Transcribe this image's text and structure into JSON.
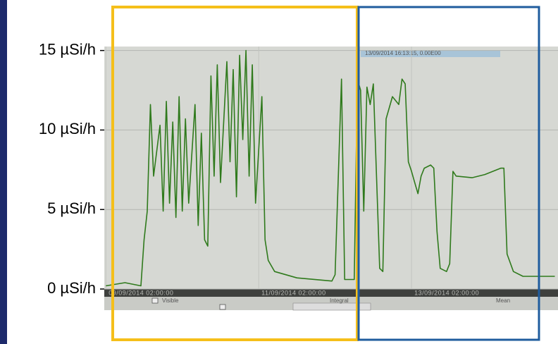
{
  "chart_data": {
    "type": "line",
    "color": "#2f7a1c",
    "x": [
      "2014-09-09T02:00",
      "2014-09-09T08:00",
      "2014-09-09T13:00",
      "2014-09-09T14:00",
      "2014-09-09T15:00",
      "2014-09-09T16:00",
      "2014-09-09T17:00",
      "2014-09-09T19:00",
      "2014-09-09T20:00",
      "2014-09-09T21:00",
      "2014-09-09T22:00",
      "2014-09-09T23:00",
      "2014-09-10T00:00",
      "2014-09-10T01:00",
      "2014-09-10T02:00",
      "2014-09-10T03:00",
      "2014-09-10T04:00",
      "2014-09-10T06:00",
      "2014-09-10T07:00",
      "2014-09-10T08:00",
      "2014-09-10T09:00",
      "2014-09-10T10:00",
      "2014-09-10T11:00",
      "2014-09-10T12:00",
      "2014-09-10T13:00",
      "2014-09-10T14:00",
      "2014-09-10T16:00",
      "2014-09-10T17:00",
      "2014-09-10T18:00",
      "2014-09-10T19:00",
      "2014-09-10T20:00",
      "2014-09-10T21:00",
      "2014-09-10T22:00",
      "2014-09-10T23:00",
      "2014-09-11T00:00",
      "2014-09-11T01:00",
      "2014-09-11T03:00",
      "2014-09-11T04:00",
      "2014-09-11T05:00",
      "2014-09-11T07:00",
      "2014-09-11T14:00",
      "2014-09-12T01:00",
      "2014-09-12T02:00",
      "2014-09-12T03:00",
      "2014-09-12T04:00",
      "2014-09-12T05:00",
      "2014-09-12T08:00",
      "2014-09-12T09:00",
      "2014-09-12T10:00",
      "2014-09-12T11:00",
      "2014-09-12T12:00",
      "2014-09-12T13:00",
      "2014-09-12T14:00",
      "2014-09-12T16:00",
      "2014-09-12T17:00",
      "2014-09-12T18:00",
      "2014-09-12T20:00",
      "2014-09-12T22:00",
      "2014-09-12T23:00",
      "2014-09-13T00:00",
      "2014-09-13T01:00",
      "2014-09-13T02:00",
      "2014-09-13T03:00",
      "2014-09-13T04:00",
      "2014-09-13T05:00",
      "2014-09-13T06:00",
      "2014-09-13T08:00",
      "2014-09-13T09:00",
      "2014-09-13T10:00",
      "2014-09-13T11:00",
      "2014-09-13T13:00",
      "2014-09-13T14:00",
      "2014-09-13T15:00",
      "2014-09-13T16:00",
      "2014-09-13T21:00",
      "2014-09-14T01:00",
      "2014-09-14T06:00",
      "2014-09-14T07:00",
      "2014-09-14T08:00",
      "2014-09-14T10:00",
      "2014-09-14T13:00",
      "2014-09-14T23:00"
    ],
    "values": [
      0.2,
      0.4,
      0.2,
      3.1,
      4.9,
      11.6,
      7.1,
      10.3,
      4.9,
      11.8,
      5.4,
      10.5,
      4.5,
      12.1,
      4.9,
      10.7,
      5.4,
      11.6,
      4.0,
      9.8,
      3.1,
      2.7,
      13.4,
      7.1,
      14.1,
      6.7,
      14.3,
      8.0,
      13.8,
      5.8,
      14.7,
      9.4,
      15.0,
      7.1,
      14.1,
      5.4,
      12.1,
      3.1,
      1.8,
      1.1,
      0.7,
      0.5,
      0.9,
      7.1,
      13.2,
      0.6,
      0.6,
      13.2,
      12.5,
      4.9,
      12.7,
      11.6,
      12.9,
      1.3,
      1.1,
      10.7,
      12.1,
      11.6,
      13.2,
      12.9,
      8.0,
      7.4,
      6.7,
      6.0,
      7.1,
      7.6,
      7.8,
      7.6,
      3.6,
      1.3,
      1.1,
      1.6,
      7.4,
      7.1,
      7.0,
      7.2,
      7.6,
      7.6,
      2.2,
      1.1,
      0.8,
      0.8
    ],
    "xlim": [
      "2014-09-09T01:30",
      "2014-09-15T00:00"
    ],
    "xticks": [
      {
        "value": "2014-09-09T02:00",
        "label": "09/09/2014 02:00:00"
      },
      {
        "value": "2014-09-11T02:00",
        "label": "11/09/2014 02:00:00"
      },
      {
        "value": "2014-09-13T02:00",
        "label": "13/09/2014 02:00:00"
      }
    ],
    "ylim": [
      0,
      15.25
    ],
    "yticks": [
      {
        "value": 0,
        "label": "0 µSi/h"
      },
      {
        "value": 5,
        "label": "5 µSi/h"
      },
      {
        "value": 10,
        "label": "10 µSi/h"
      },
      {
        "value": 15,
        "label": "15 µSi/h"
      }
    ],
    "grid": true,
    "annotations": [
      "13/09/2014 16:13:15, 0.00E00",
      "Visible",
      "Integral",
      "Mean"
    ]
  }
}
